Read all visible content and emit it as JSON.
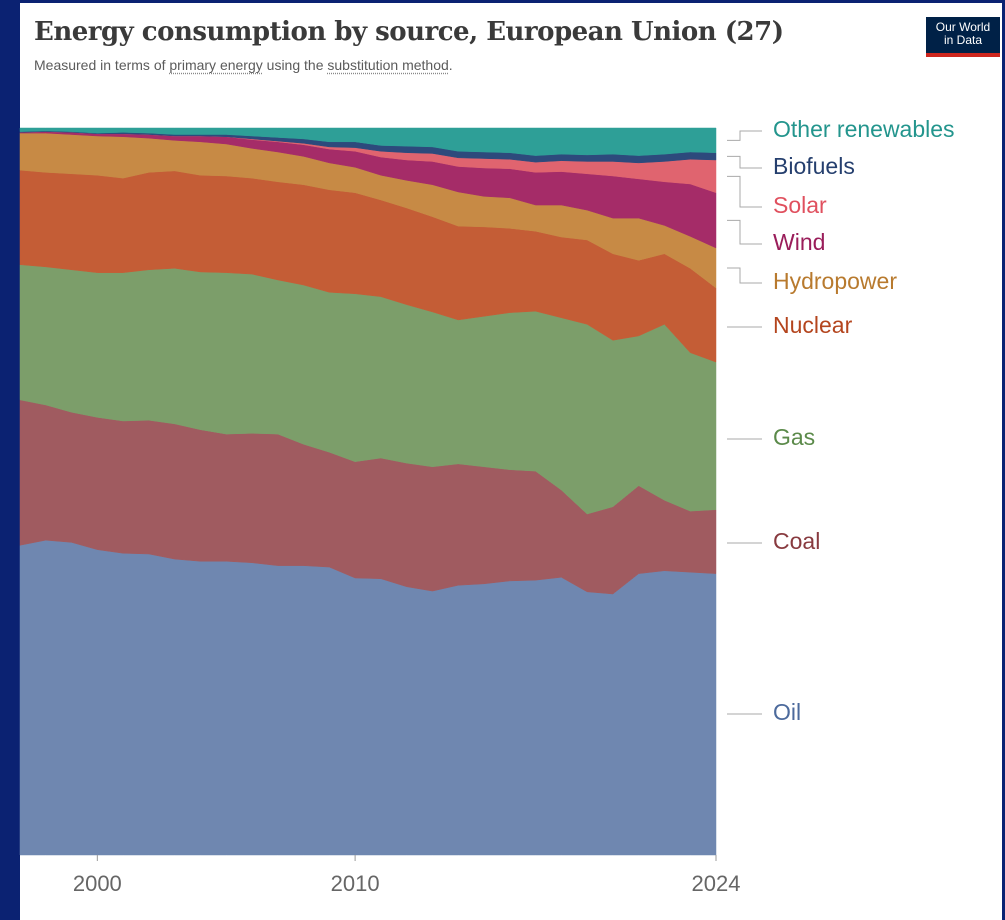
{
  "chart_data": {
    "type": "stacked-area",
    "title": "Energy consumption by source, European Union (27)",
    "subtitle_parts": [
      "Measured in terms of ",
      "primary energy",
      " using the ",
      "substitution method",
      "."
    ],
    "logo": [
      "Our World",
      "in Data"
    ],
    "x": [
      1997,
      1998,
      1999,
      2000,
      2001,
      2002,
      2003,
      2004,
      2005,
      2006,
      2007,
      2008,
      2009,
      2010,
      2011,
      2012,
      2013,
      2014,
      2015,
      2016,
      2017,
      2018,
      2019,
      2020,
      2021,
      2022,
      2023,
      2024
    ],
    "xlim": [
      1997,
      2024
    ],
    "xticks": [
      2000,
      2010,
      2024
    ],
    "ylim": [
      0,
      100
    ],
    "series": [
      {
        "name": "Oil",
        "color": "#6f87b0",
        "label_color": "#4c6a9c",
        "values": [
          42.6,
          43.3,
          43.0,
          42.0,
          41.5,
          41.4,
          40.7,
          40.4,
          40.4,
          40.2,
          39.8,
          39.8,
          39.6,
          38.1,
          38.0,
          36.9,
          36.3,
          37.1,
          37.3,
          37.7,
          37.8,
          38.2,
          36.2,
          35.9,
          38.7,
          39.1,
          38.9,
          38.7
        ]
      },
      {
        "name": "Coal",
        "color": "#a05b60",
        "label_color": "#883a3f",
        "values": [
          20.0,
          18.6,
          17.9,
          18.2,
          18.2,
          18.4,
          18.6,
          18.1,
          17.5,
          17.8,
          18.1,
          16.7,
          15.8,
          16.0,
          16.6,
          17.0,
          17.1,
          16.7,
          16.1,
          15.3,
          15.0,
          12.0,
          10.7,
          12.0,
          12.1,
          9.7,
          8.4,
          8.8
        ]
      },
      {
        "name": "Gas",
        "color": "#7c9e6a",
        "label_color": "#5b8a4a",
        "values": [
          18.6,
          19.0,
          19.6,
          19.9,
          20.4,
          20.7,
          21.4,
          21.7,
          22.2,
          21.9,
          21.2,
          21.9,
          22.0,
          23.1,
          22.2,
          21.8,
          21.3,
          19.8,
          20.7,
          21.6,
          22.0,
          23.7,
          26.1,
          22.9,
          20.6,
          24.2,
          21.8,
          20.3
        ]
      },
      {
        "name": "Nuclear",
        "color": "#c45d36",
        "label_color": "#b4451e",
        "values": [
          13.0,
          13.0,
          13.2,
          13.4,
          13.0,
          13.4,
          13.4,
          13.3,
          13.3,
          13.2,
          13.5,
          13.8,
          14.1,
          13.9,
          13.3,
          13.3,
          13.1,
          12.9,
          12.3,
          11.6,
          11.0,
          11.1,
          11.6,
          11.9,
          10.4,
          9.7,
          11.6,
          10.2
        ]
      },
      {
        "name": "Hydropower",
        "color": "#c78a45",
        "label_color": "#b87a2e",
        "values": [
          5.1,
          5.4,
          5.4,
          5.4,
          5.7,
          4.7,
          4.2,
          4.6,
          4.4,
          4.1,
          4.1,
          3.9,
          3.7,
          3.5,
          3.4,
          3.8,
          4.4,
          4.7,
          4.2,
          4.2,
          3.6,
          4.4,
          4.1,
          4.9,
          5.8,
          3.9,
          4.4,
          5.5
        ]
      },
      {
        "name": "Wind",
        "color": "#a52c68",
        "label_color": "#9a1d5a",
        "values": [
          0.1,
          0.2,
          0.3,
          0.3,
          0.4,
          0.5,
          0.6,
          0.8,
          1.0,
          1.2,
          1.4,
          1.6,
          1.9,
          2.2,
          2.5,
          2.8,
          3.2,
          3.5,
          3.9,
          4.0,
          4.5,
          4.6,
          5.0,
          5.8,
          5.4,
          6.0,
          7.2,
          7.6
        ]
      },
      {
        "name": "Solar",
        "color": "#e0646f",
        "label_color": "#e0505e",
        "values": [
          0,
          0,
          0,
          0,
          0,
          0,
          0,
          0,
          0,
          0.1,
          0.1,
          0.2,
          0.3,
          0.5,
          0.8,
          1.0,
          1.1,
          1.2,
          1.3,
          1.3,
          1.4,
          1.5,
          1.7,
          2.0,
          2.2,
          2.8,
          3.4,
          4.5
        ]
      },
      {
        "name": "Biofuels",
        "color": "#2d4a7c",
        "label_color": "#253f6e",
        "values": [
          0.1,
          0.1,
          0.1,
          0.1,
          0.2,
          0.2,
          0.2,
          0.2,
          0.3,
          0.4,
          0.5,
          0.6,
          0.7,
          0.8,
          0.8,
          0.9,
          0.9,
          0.9,
          0.9,
          0.9,
          0.9,
          0.9,
          0.9,
          1.0,
          1.0,
          1.0,
          1.0,
          1.0
        ]
      },
      {
        "name": "Other renewables",
        "color": "#2e9f97",
        "label_color": "#23958d",
        "values": [
          0.5,
          0.4,
          0.5,
          0.7,
          0.6,
          0.7,
          0.9,
          0.9,
          0.9,
          1.1,
          1.3,
          1.5,
          1.9,
          1.9,
          2.4,
          2.5,
          2.6,
          3.2,
          3.3,
          3.4,
          3.8,
          3.6,
          3.7,
          3.6,
          3.8,
          3.6,
          3.3,
          3.4
        ]
      }
    ]
  }
}
